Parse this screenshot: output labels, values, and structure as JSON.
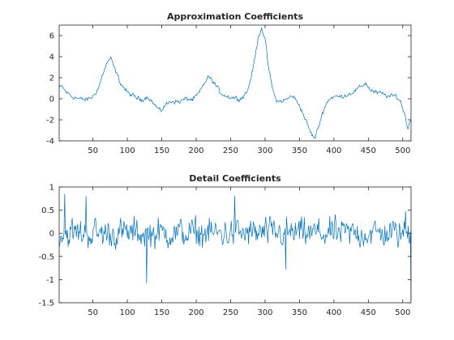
{
  "chart_data": [
    {
      "type": "line",
      "title": "Approximation Coefficients",
      "xlabel": "",
      "ylabel": "",
      "xlim": [
        1,
        512
      ],
      "ylim": [
        -4,
        7
      ],
      "xticks": [
        50,
        100,
        150,
        200,
        250,
        300,
        350,
        400,
        450,
        500
      ],
      "yticks": [
        -4,
        -2,
        0,
        2,
        4,
        6
      ],
      "grid": false,
      "color": "#0072BD",
      "anchors": [
        [
          1,
          1.0
        ],
        [
          5,
          1.2
        ],
        [
          10,
          0.7
        ],
        [
          20,
          0.2
        ],
        [
          30,
          0.0
        ],
        [
          40,
          -0.1
        ],
        [
          50,
          0.2
        ],
        [
          58,
          1.0
        ],
        [
          65,
          2.5
        ],
        [
          72,
          3.6
        ],
        [
          76,
          3.8
        ],
        [
          82,
          2.8
        ],
        [
          90,
          1.5
        ],
        [
          100,
          0.6
        ],
        [
          110,
          0.2
        ],
        [
          120,
          -0.1
        ],
        [
          130,
          0.2
        ],
        [
          140,
          -0.6
        ],
        [
          148,
          -1.2
        ],
        [
          155,
          -0.6
        ],
        [
          165,
          -0.2
        ],
        [
          175,
          -0.3
        ],
        [
          185,
          0.0
        ],
        [
          195,
          -0.1
        ],
        [
          205,
          0.6
        ],
        [
          213,
          1.6
        ],
        [
          218,
          2.1
        ],
        [
          225,
          1.6
        ],
        [
          235,
          0.6
        ],
        [
          245,
          0.2
        ],
        [
          255,
          0.1
        ],
        [
          265,
          0.0
        ],
        [
          275,
          0.8
        ],
        [
          283,
          3.0
        ],
        [
          290,
          5.8
        ],
        [
          295,
          6.8
        ],
        [
          300,
          5.6
        ],
        [
          305,
          3.0
        ],
        [
          310,
          1.2
        ],
        [
          315,
          0.0
        ],
        [
          320,
          -0.3
        ],
        [
          330,
          -0.1
        ],
        [
          340,
          0.3
        ],
        [
          350,
          -0.6
        ],
        [
          360,
          -2.2
        ],
        [
          367,
          -3.3
        ],
        [
          372,
          -3.8
        ],
        [
          378,
          -2.6
        ],
        [
          385,
          -1.0
        ],
        [
          393,
          0.0
        ],
        [
          400,
          0.2
        ],
        [
          410,
          0.2
        ],
        [
          420,
          0.4
        ],
        [
          430,
          0.7
        ],
        [
          440,
          1.2
        ],
        [
          446,
          1.5
        ],
        [
          452,
          0.9
        ],
        [
          460,
          0.6
        ],
        [
          470,
          0.5
        ],
        [
          480,
          0.2
        ],
        [
          490,
          0.3
        ],
        [
          497,
          -0.3
        ],
        [
          503,
          -1.5
        ],
        [
          507,
          -2.8
        ],
        [
          512,
          -2.0
        ]
      ],
      "noise": 0.2
    },
    {
      "type": "line",
      "title": "Detail Coefficients",
      "xlabel": "",
      "ylabel": "",
      "xlim": [
        1,
        512
      ],
      "ylim": [
        -1.5,
        1
      ],
      "xticks": [
        50,
        100,
        150,
        200,
        250,
        300,
        350,
        400,
        450,
        500
      ],
      "yticks": [
        -1.5,
        -1,
        -0.5,
        0,
        0.5,
        1
      ],
      "grid": false,
      "color": "#0072BD",
      "anchors": [
        [
          1,
          0.0
        ],
        [
          512,
          0.0
        ]
      ],
      "noise": 0.3,
      "extremes": [
        [
          9,
          0.85
        ],
        [
          40,
          0.81
        ],
        [
          128,
          -1.08
        ],
        [
          256,
          0.81
        ],
        [
          330,
          -0.78
        ],
        [
          504,
          0.48
        ],
        [
          512,
          -1.45
        ]
      ]
    }
  ]
}
